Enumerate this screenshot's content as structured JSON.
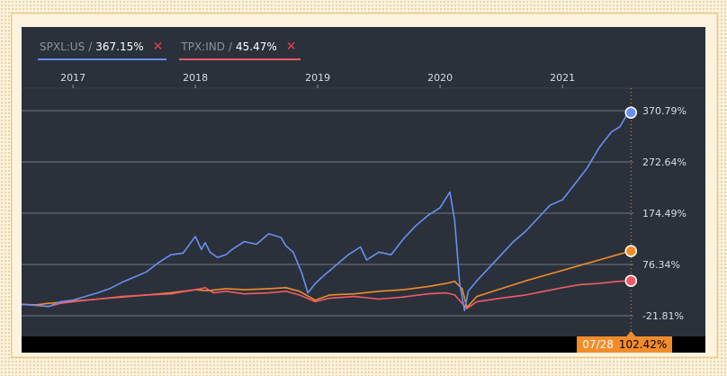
{
  "legend": [
    {
      "symbol": "SPXL:US",
      "sep": "/",
      "value": "367.15%",
      "color": "#6a8ff0",
      "close": "✕"
    },
    {
      "symbol": "TPX:IND",
      "sep": "/",
      "value": "45.47%",
      "color": "#f05a68",
      "close": "✕"
    }
  ],
  "badge": {
    "date": "07/28",
    "value": "102.42%"
  },
  "colors": {
    "spxl": "#6a8ff0",
    "tpx": "#f05a68",
    "third": "#f28c28",
    "grid": "#707780",
    "panel": "#2a313b"
  },
  "chart_data": {
    "type": "line",
    "x_tick_labels": [
      "2017",
      "2018",
      "2019",
      "2020",
      "2021"
    ],
    "x_ticks": [
      2017.0,
      2018.0,
      2019.0,
      2020.0,
      2021.0
    ],
    "xlim": [
      2016.58,
      2021.58
    ],
    "y_tick_labels": [
      "370.79%",
      "272.64%",
      "174.49%",
      "76.34%",
      "-21.81%"
    ],
    "y_ticks": [
      370.79,
      272.64,
      174.49,
      76.34,
      -21.81
    ],
    "ylim": [
      -40,
      390
    ],
    "grid": true,
    "series": [
      {
        "name": "SPXL:US",
        "color": "#6a8ff0",
        "x": [
          2016.58,
          2016.7,
          2016.8,
          2016.9,
          2017.0,
          2017.1,
          2017.2,
          2017.3,
          2017.4,
          2017.5,
          2017.6,
          2017.7,
          2017.8,
          2017.9,
          2018.0,
          2018.05,
          2018.08,
          2018.12,
          2018.18,
          2018.25,
          2018.3,
          2018.4,
          2018.5,
          2018.6,
          2018.7,
          2018.74,
          2018.8,
          2018.87,
          2018.92,
          2018.98,
          2019.05,
          2019.15,
          2019.25,
          2019.35,
          2019.4,
          2019.5,
          2019.6,
          2019.7,
          2019.8,
          2019.9,
          2020.0,
          2020.08,
          2020.12,
          2020.16,
          2020.2,
          2020.23,
          2020.3,
          2020.4,
          2020.5,
          2020.6,
          2020.7,
          2020.8,
          2020.9,
          2021.0,
          2021.1,
          2021.2,
          2021.3,
          2021.4,
          2021.47,
          2021.52,
          2021.56
        ],
        "values": [
          0,
          -2,
          -4,
          5,
          8,
          15,
          22,
          30,
          42,
          52,
          62,
          80,
          95,
          98,
          130,
          105,
          118,
          100,
          90,
          95,
          105,
          120,
          115,
          135,
          128,
          112,
          100,
          60,
          22,
          40,
          55,
          75,
          95,
          110,
          85,
          100,
          95,
          125,
          150,
          170,
          185,
          215,
          160,
          40,
          -12,
          25,
          45,
          70,
          95,
          120,
          140,
          165,
          190,
          200,
          230,
          260,
          300,
          330,
          340,
          360,
          367
        ]
      },
      {
        "name": "TPX:IND",
        "color": "#f05a68",
        "x": [
          2016.58,
          2016.7,
          2016.8,
          2016.9,
          2017.0,
          2017.2,
          2017.4,
          2017.6,
          2017.8,
          2018.0,
          2018.08,
          2018.15,
          2018.25,
          2018.4,
          2018.6,
          2018.74,
          2018.85,
          2018.98,
          2019.1,
          2019.3,
          2019.5,
          2019.7,
          2019.9,
          2020.05,
          2020.12,
          2020.18,
          2020.22,
          2020.3,
          2020.5,
          2020.7,
          2020.85,
          2021.0,
          2021.15,
          2021.3,
          2021.45,
          2021.56
        ],
        "values": [
          0,
          -2,
          -4,
          2,
          5,
          10,
          15,
          18,
          20,
          28,
          32,
          22,
          25,
          20,
          22,
          25,
          18,
          5,
          12,
          15,
          10,
          14,
          20,
          22,
          18,
          2,
          -8,
          5,
          12,
          18,
          25,
          32,
          38,
          40,
          44,
          45
        ]
      },
      {
        "color": "#f28c28",
        "x": [
          2016.58,
          2016.7,
          2016.8,
          2016.9,
          2017.0,
          2017.2,
          2017.4,
          2017.6,
          2017.8,
          2018.0,
          2018.1,
          2018.25,
          2018.4,
          2018.6,
          2018.74,
          2018.85,
          2018.98,
          2019.1,
          2019.3,
          2019.5,
          2019.7,
          2019.9,
          2020.05,
          2020.12,
          2020.18,
          2020.22,
          2020.3,
          2020.5,
          2020.7,
          2020.85,
          2021.0,
          2021.15,
          2021.3,
          2021.45,
          2021.56
        ],
        "values": [
          0,
          -1,
          2,
          4,
          6,
          10,
          14,
          18,
          22,
          28,
          26,
          30,
          28,
          30,
          32,
          25,
          8,
          18,
          20,
          25,
          28,
          34,
          40,
          44,
          30,
          -6,
          15,
          30,
          45,
          55,
          65,
          75,
          85,
          95,
          102
        ]
      }
    ]
  }
}
